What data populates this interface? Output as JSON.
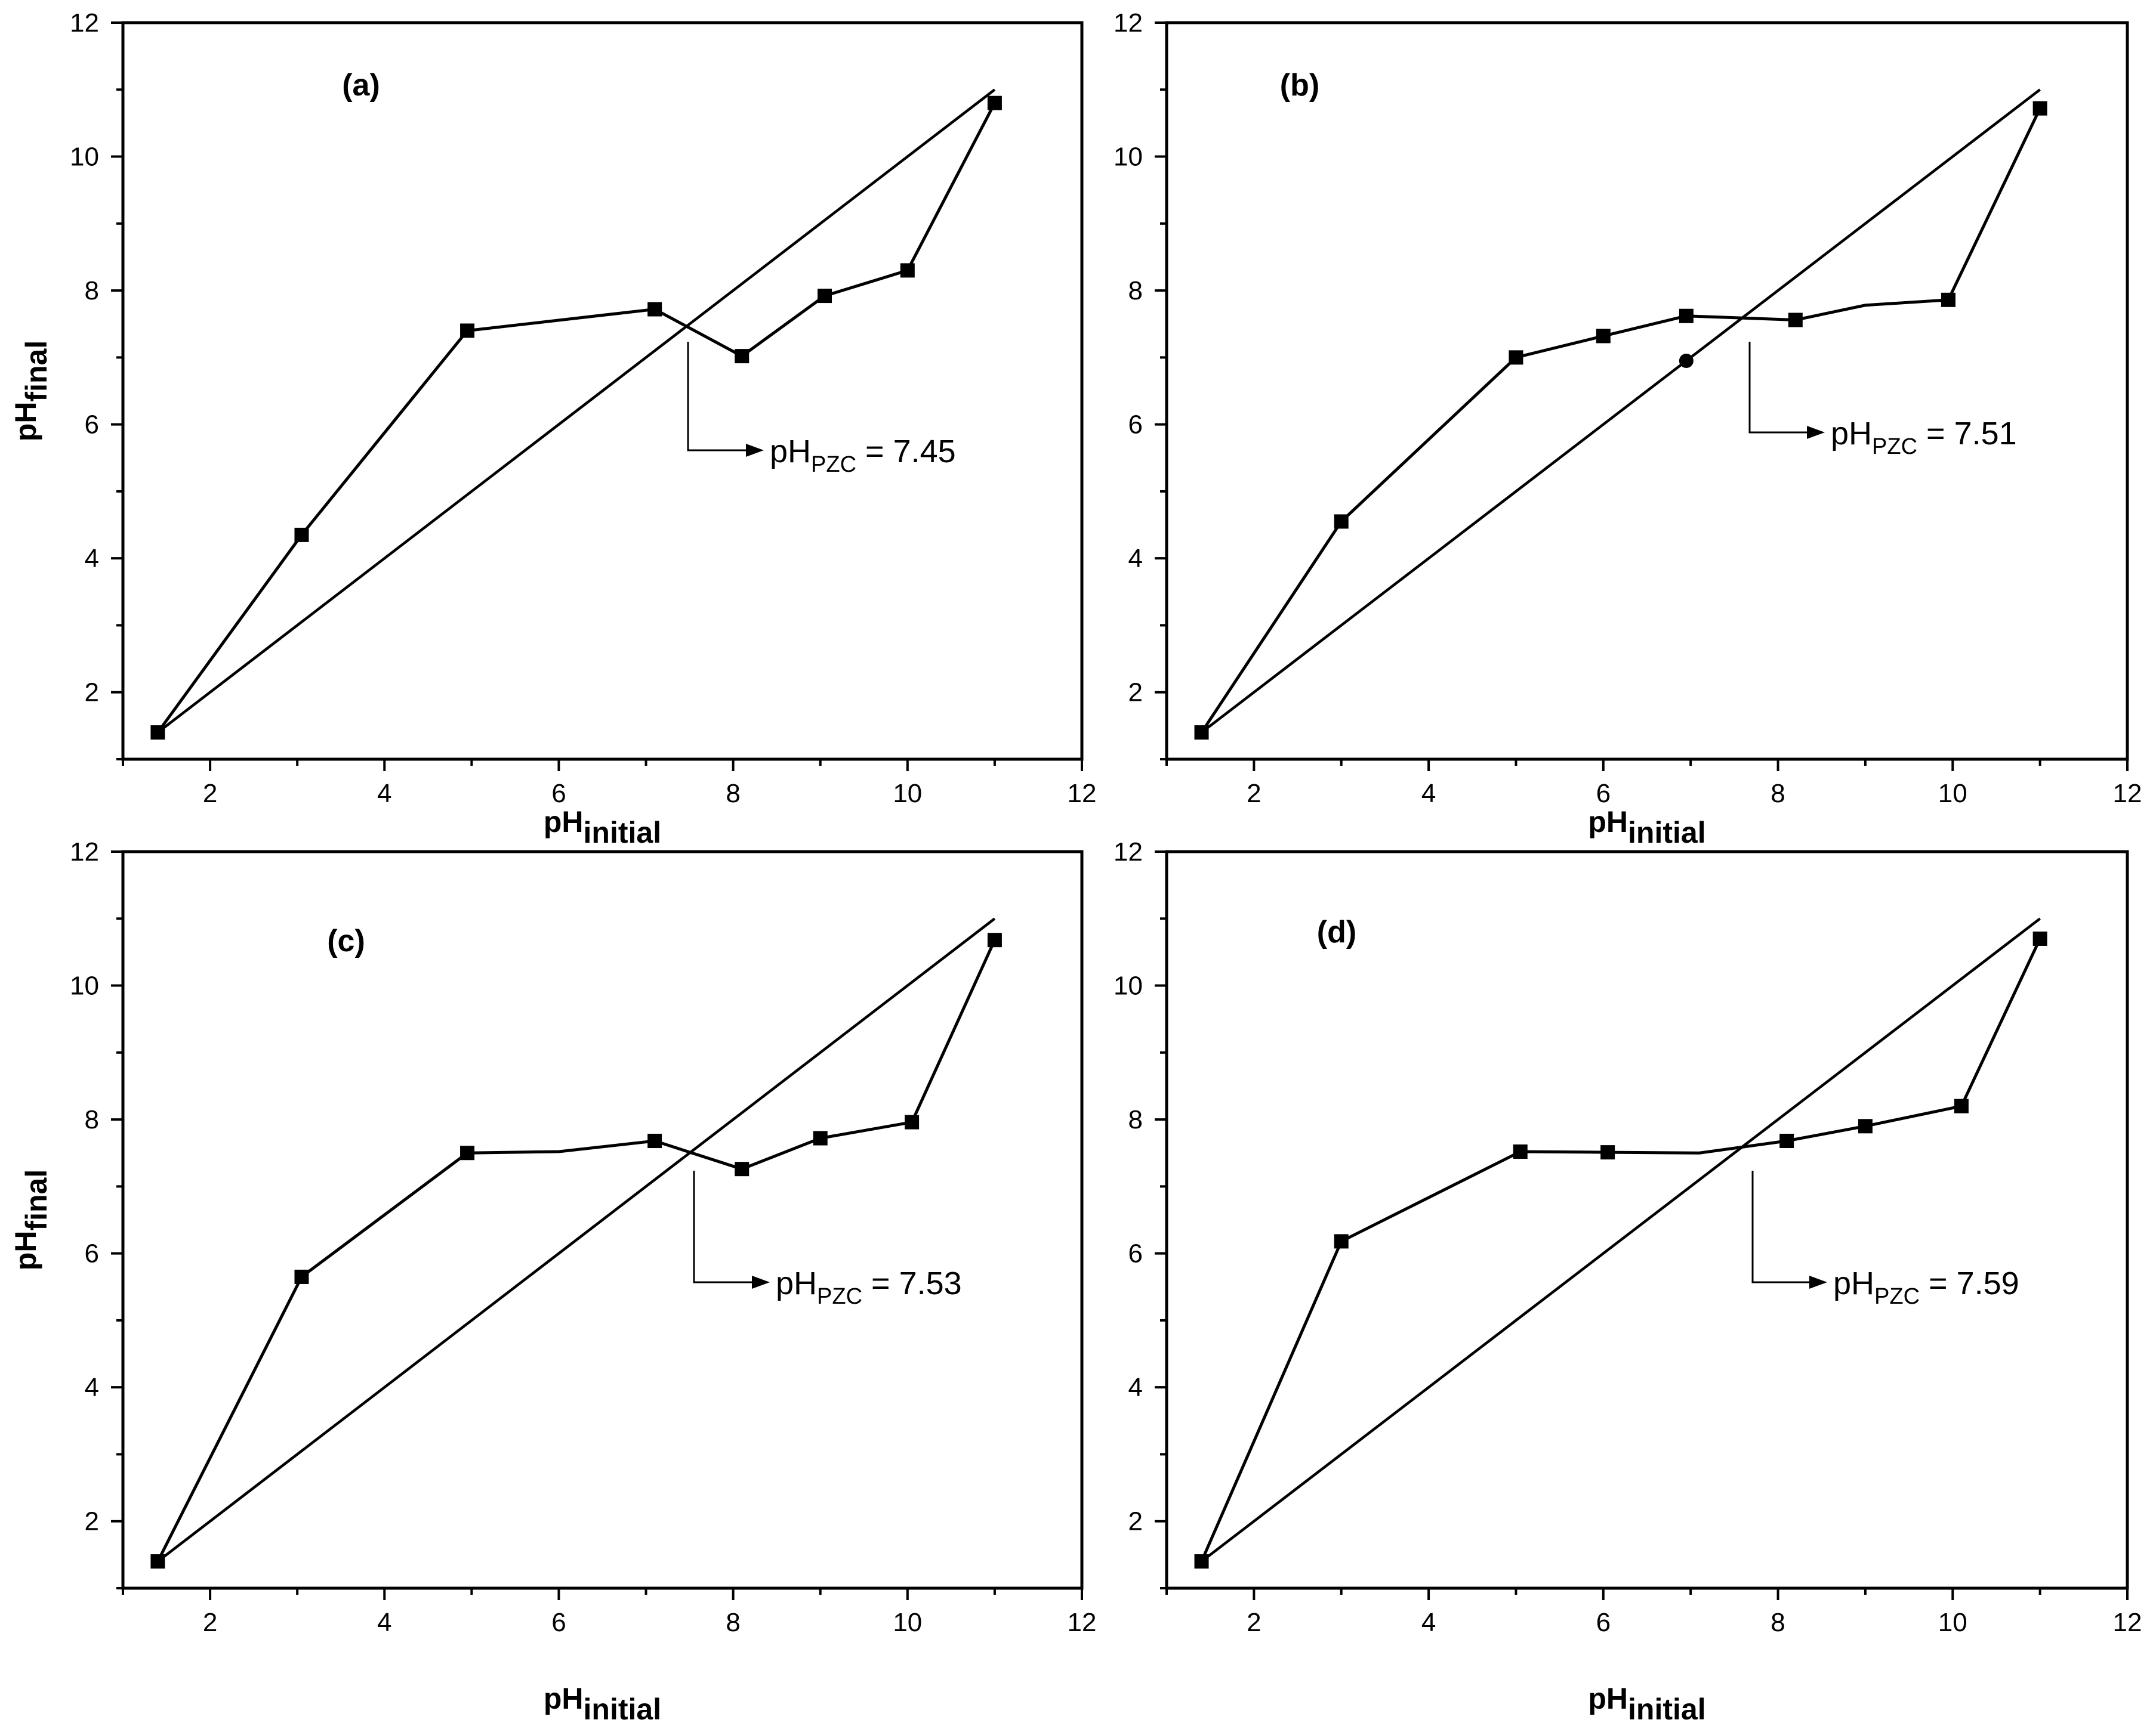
{
  "chart_data": [
    {
      "type": "line",
      "panel_label": "(a)",
      "xlabel": "pH",
      "xlabel_sub": "initial",
      "ylabel": "pH",
      "ylabel_sub": "final",
      "xlim": [
        1,
        12
      ],
      "ylim": [
        1,
        12
      ],
      "xticks": [
        2,
        4,
        6,
        8,
        10,
        12
      ],
      "yticks": [
        2,
        4,
        6,
        8,
        10,
        12
      ],
      "series": [
        {
          "name": "pH final",
          "x": [
            1.4,
            3.05,
            4.95,
            7.1,
            8.1,
            9.05,
            10.0,
            11.0
          ],
          "y": [
            1.4,
            4.35,
            7.4,
            7.72,
            7.02,
            7.92,
            8.3,
            10.8
          ],
          "markers": [
            "square",
            "square",
            "square",
            "square",
            "square",
            "square",
            "square",
            "square"
          ]
        },
        {
          "name": "reference",
          "x": [
            1.4,
            11.0
          ],
          "y": [
            1.4,
            11.0
          ]
        }
      ],
      "annotation": {
        "prefix": "pH",
        "sub": "PZC",
        "suffix": " = 7.45",
        "pzc": 7.45
      }
    },
    {
      "type": "line",
      "panel_label": "(b)",
      "xlabel": "pH",
      "xlabel_sub": "initial",
      "ylabel": "",
      "ylabel_sub": "",
      "xlim": [
        1,
        12
      ],
      "ylim": [
        1,
        12
      ],
      "xticks": [
        2,
        4,
        6,
        8,
        10,
        12
      ],
      "yticks": [
        2,
        4,
        6,
        8,
        10,
        12
      ],
      "series": [
        {
          "name": "pH final",
          "x": [
            1.4,
            3.0,
            5.0,
            6.0,
            6.95,
            8.2,
            9.0,
            9.95,
            11.0
          ],
          "y": [
            1.4,
            4.55,
            7.0,
            7.32,
            7.62,
            7.56,
            7.78,
            7.86,
            10.72
          ],
          "markers": [
            "square",
            "square",
            "square",
            "square",
            "square",
            "square",
            "none",
            "square",
            "square"
          ]
        },
        {
          "name": "reference",
          "x": [
            1.4,
            11.0
          ],
          "y": [
            1.4,
            11.0
          ],
          "points": [
            {
              "x": 6.95,
              "y": 6.95,
              "marker": "circle"
            }
          ]
        }
      ],
      "annotation": {
        "prefix": "pH",
        "sub": "PZC",
        "suffix": " = 7.51",
        "pzc": 7.51
      }
    },
    {
      "type": "line",
      "panel_label": "(c)",
      "xlabel": "pH",
      "xlabel_sub": "initial",
      "ylabel": "pH",
      "ylabel_sub": "final",
      "xlim": [
        1,
        12
      ],
      "ylim": [
        1,
        12
      ],
      "xticks": [
        2,
        4,
        6,
        8,
        10,
        12
      ],
      "yticks": [
        2,
        4,
        6,
        8,
        10,
        12
      ],
      "series": [
        {
          "name": "pH final",
          "x": [
            1.4,
            3.05,
            4.95,
            6.0,
            7.1,
            8.1,
            9.0,
            10.05,
            11.0
          ],
          "y": [
            1.4,
            5.65,
            7.5,
            7.52,
            7.68,
            7.26,
            7.72,
            7.96,
            10.68
          ],
          "markers": [
            "square",
            "square",
            "square",
            "none",
            "square",
            "square",
            "square",
            "square",
            "square"
          ]
        },
        {
          "name": "reference",
          "x": [
            1.4,
            11.0
          ],
          "y": [
            1.4,
            11.0
          ]
        }
      ],
      "annotation": {
        "prefix": "pH",
        "sub": "PZC",
        "suffix": " = 7.53",
        "pzc": 7.53
      }
    },
    {
      "type": "line",
      "panel_label": "(d)",
      "xlabel": "pH",
      "xlabel_sub": "initial",
      "ylabel": "",
      "ylabel_sub": "",
      "xlim": [
        1,
        12
      ],
      "ylim": [
        1,
        12
      ],
      "xticks": [
        2,
        4,
        6,
        8,
        10,
        12
      ],
      "yticks": [
        2,
        4,
        6,
        8,
        10,
        12
      ],
      "series": [
        {
          "name": "pH final",
          "x": [
            1.4,
            3.0,
            5.05,
            6.05,
            7.1,
            8.1,
            9.0,
            10.1,
            11.0
          ],
          "y": [
            1.4,
            6.18,
            7.52,
            7.51,
            7.5,
            7.68,
            7.9,
            8.2,
            10.7
          ],
          "markers": [
            "square",
            "square",
            "square",
            "square",
            "none",
            "square",
            "square",
            "square",
            "square"
          ]
        },
        {
          "name": "reference",
          "x": [
            1.4,
            11.0
          ],
          "y": [
            1.4,
            11.0
          ]
        }
      ],
      "annotation": {
        "prefix": "pH",
        "sub": "PZC",
        "suffix": " = 7.59",
        "pzc": 7.59
      }
    }
  ]
}
